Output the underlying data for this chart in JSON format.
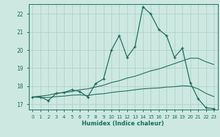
{
  "title": "",
  "xlabel": "Humidex (Indice chaleur)",
  "bg_color": "#cce8e0",
  "line_color": "#1a6b5a",
  "grid_color": "#aaccc4",
  "xlim": [
    -0.5,
    23.5
  ],
  "ylim": [
    16.7,
    22.55
  ],
  "yticks": [
    17,
    18,
    19,
    20,
    21,
    22
  ],
  "xticks": [
    0,
    1,
    2,
    3,
    4,
    5,
    6,
    7,
    8,
    9,
    10,
    11,
    12,
    13,
    14,
    15,
    16,
    17,
    18,
    19,
    20,
    21,
    22,
    23
  ],
  "x_data": [
    0,
    1,
    2,
    3,
    4,
    5,
    6,
    7,
    8,
    9,
    10,
    11,
    12,
    13,
    14,
    15,
    16,
    17,
    18,
    19,
    20,
    21,
    22,
    23
  ],
  "y_main": [
    17.4,
    17.4,
    17.2,
    17.6,
    17.65,
    17.8,
    17.7,
    17.4,
    18.15,
    18.4,
    20.0,
    20.8,
    19.6,
    20.2,
    22.4,
    22.0,
    21.15,
    20.8,
    19.6,
    20.1,
    18.2,
    17.3,
    16.8,
    16.75
  ],
  "y_trend1": [
    17.4,
    17.45,
    17.5,
    17.6,
    17.65,
    17.7,
    17.8,
    17.85,
    17.95,
    18.05,
    18.2,
    18.3,
    18.45,
    18.55,
    18.7,
    18.85,
    18.95,
    19.1,
    19.25,
    19.4,
    19.55,
    19.55,
    19.35,
    19.2
  ],
  "y_trend2": [
    17.4,
    17.38,
    17.37,
    17.42,
    17.45,
    17.5,
    17.52,
    17.48,
    17.55,
    17.58,
    17.65,
    17.7,
    17.74,
    17.8,
    17.85,
    17.88,
    17.9,
    17.95,
    17.97,
    18.02,
    18.0,
    17.85,
    17.6,
    17.42
  ]
}
